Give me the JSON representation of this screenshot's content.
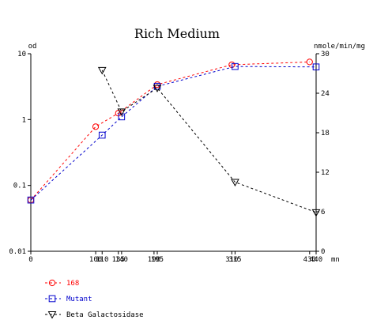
{
  "chart_data": {
    "type": "line",
    "title": "Rich Medium",
    "ylabel_left": "od",
    "ylabel_right": "nmole/min/mg",
    "xlabel": "mn",
    "left_axis": {
      "scale": "log",
      "ylim": [
        0.01,
        10
      ],
      "tick_labels": [
        "10",
        "1",
        "0.1",
        "0.01"
      ],
      "tick_values": [
        10,
        1,
        0.1,
        0.01
      ]
    },
    "right_axis": {
      "scale": "linear",
      "ylim": [
        0,
        30
      ],
      "tick_labels": [
        "30",
        "24",
        "18",
        "12",
        "6",
        "0"
      ],
      "tick_values": [
        30,
        24,
        18,
        12,
        6,
        0
      ]
    },
    "xlim": [
      0,
      440
    ],
    "x_tick_labels": [
      {
        "value": 0,
        "label": "0"
      },
      {
        "value": 100,
        "label": "100"
      },
      {
        "value": 110,
        "label": "110"
      },
      {
        "value": 135,
        "label": "135"
      },
      {
        "value": 140,
        "label": "140"
      },
      {
        "value": 190,
        "label": "190"
      },
      {
        "value": 195,
        "label": "195"
      },
      {
        "value": 310,
        "label": "310"
      },
      {
        "value": 315,
        "label": "315"
      },
      {
        "value": 430,
        "label": "430"
      },
      {
        "value": 440,
        "label": "440"
      }
    ],
    "series": [
      {
        "name": "168",
        "axis": "left",
        "color": "#ff0000",
        "marker": "circle",
        "x": [
          0,
          100,
          135,
          195,
          310,
          430
        ],
        "y": [
          0.06,
          0.78,
          1.25,
          3.4,
          6.8,
          7.5
        ]
      },
      {
        "name": "Mutant",
        "axis": "left",
        "color": "#0000cc",
        "marker": "square",
        "x": [
          0,
          110,
          140,
          195,
          315,
          440
        ],
        "y": [
          0.06,
          0.58,
          1.1,
          3.2,
          6.4,
          6.3
        ]
      },
      {
        "name": "Beta Galactosidase",
        "axis": "right",
        "color": "#000000",
        "marker": "triangle-down",
        "x": [
          110,
          140,
          195,
          315,
          440
        ],
        "y": [
          27.5,
          21.2,
          24.8,
          10.5,
          5.9
        ]
      }
    ],
    "legend_position": "bottom-left",
    "grid": false
  }
}
